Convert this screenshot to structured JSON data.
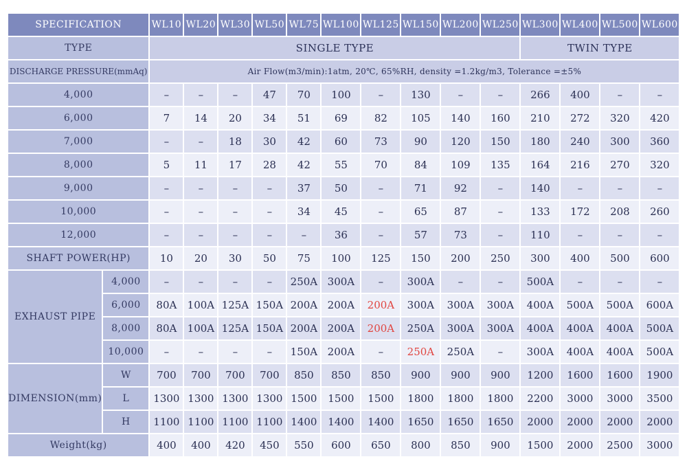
{
  "header": {
    "spec_label": "SPECIFICATION",
    "models": [
      "WL10",
      "WL20",
      "WL30",
      "WL50",
      "WL75",
      "WL100",
      "WL125",
      "WL150",
      "WL200",
      "WL250",
      "WL300",
      "WL400",
      "WL500",
      "WL600"
    ]
  },
  "type_row": {
    "label": "TYPE",
    "single": "SINGLE TYPE",
    "twin": "TWIN TYPE"
  },
  "discharge": {
    "label": "DISCHARGE PRESSURE(mmAq)",
    "note": "Air Flow(m3/min):1atm, 20℃, 65%RH, density =1.2kg/m3, Tolerance =±5%"
  },
  "pressure_rows": [
    {
      "label": "4,000",
      "values": [
        "–",
        "–",
        "–",
        "47",
        "70",
        "100",
        "–",
        "130",
        "–",
        "–",
        "266",
        "400",
        "–",
        "–"
      ]
    },
    {
      "label": "6,000",
      "values": [
        "7",
        "14",
        "20",
        "34",
        "51",
        "69",
        "82",
        "105",
        "140",
        "160",
        "210",
        "272",
        "320",
        "420"
      ]
    },
    {
      "label": "7,000",
      "values": [
        "–",
        "–",
        "18",
        "30",
        "42",
        "60",
        "73",
        "90",
        "120",
        "150",
        "180",
        "240",
        "300",
        "360"
      ]
    },
    {
      "label": "8,000",
      "values": [
        "5",
        "11",
        "17",
        "28",
        "42",
        "55",
        "70",
        "84",
        "109",
        "135",
        "164",
        "216",
        "270",
        "320"
      ]
    },
    {
      "label": "9,000",
      "values": [
        "–",
        "–",
        "–",
        "–",
        "37",
        "50",
        "–",
        "71",
        "92",
        "–",
        "140",
        "–",
        "–",
        "–"
      ]
    },
    {
      "label": "10,000",
      "values": [
        "–",
        "–",
        "–",
        "–",
        "34",
        "45",
        "–",
        "65",
        "87",
        "–",
        "133",
        "172",
        "208",
        "260"
      ]
    },
    {
      "label": "12,000",
      "values": [
        "–",
        "–",
        "–",
        "–",
        "–",
        "36",
        "–",
        "57",
        "73",
        "–",
        "110",
        "–",
        "–",
        "–"
      ]
    }
  ],
  "shaft": {
    "label": "SHAFT POWER(HP)",
    "values": [
      "10",
      "20",
      "30",
      "50",
      "75",
      "100",
      "125",
      "150",
      "200",
      "250",
      "300",
      "400",
      "500",
      "600"
    ]
  },
  "exhaust": {
    "label": "EXHAUST PIPE",
    "rows": [
      {
        "label": "4,000",
        "values": [
          "–",
          "–",
          "–",
          "–",
          "250A",
          "300A",
          "–",
          "300A",
          "–",
          "–",
          "500A",
          "–",
          "–",
          "–"
        ]
      },
      {
        "label": "6,000",
        "values": [
          "80A",
          "100A",
          "125A",
          "150A",
          "200A",
          "200A",
          "200A",
          "300A",
          "300A",
          "300A",
          "400A",
          "500A",
          "500A",
          "600A"
        ]
      },
      {
        "label": "8,000",
        "values": [
          "80A",
          "100A",
          "125A",
          "150A",
          "200A",
          "200A",
          "200A",
          "250A",
          "300A",
          "300A",
          "400A",
          "400A",
          "400A",
          "500A"
        ]
      },
      {
        "label": "10,000",
        "values": [
          "–",
          "–",
          "–",
          "–",
          "150A",
          "200A",
          "–",
          "250A",
          "250A",
          "–",
          "300A",
          "400A",
          "400A",
          "500A"
        ]
      }
    ],
    "highlight_color": "#e0443f",
    "highlighted_cells": [
      [
        1,
        6
      ],
      [
        2,
        6
      ],
      [
        3,
        7
      ]
    ]
  },
  "dimension": {
    "label": "DIMENSION(mm)",
    "rows": [
      {
        "label": "W",
        "values": [
          "700",
          "700",
          "700",
          "700",
          "850",
          "850",
          "850",
          "900",
          "900",
          "900",
          "1200",
          "1600",
          "1600",
          "1900"
        ]
      },
      {
        "label": "L",
        "values": [
          "1300",
          "1300",
          "1300",
          "1300",
          "1500",
          "1500",
          "1500",
          "1800",
          "1800",
          "1800",
          "2200",
          "3000",
          "3000",
          "3500"
        ]
      },
      {
        "label": "H",
        "values": [
          "1100",
          "1100",
          "1100",
          "1100",
          "1400",
          "1400",
          "1400",
          "1650",
          "1650",
          "1650",
          "2000",
          "2000",
          "2000",
          "2000"
        ]
      }
    ]
  },
  "weight": {
    "label": "Weight(kg)",
    "values": [
      "400",
      "400",
      "420",
      "450",
      "550",
      "600",
      "650",
      "800",
      "850",
      "900",
      "1500",
      "2000",
      "2500",
      "3000"
    ]
  },
  "colors": {
    "header_bg": "#7e89bd",
    "label_bg": "#b8bfde",
    "band_bg": "#c9cde6",
    "row_a": "#dcdff0",
    "row_b": "#edeff8",
    "text": "#2a2f52"
  }
}
